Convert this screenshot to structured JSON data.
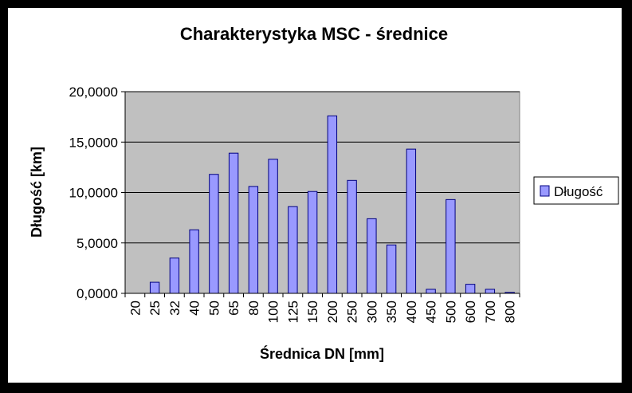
{
  "chart_data": {
    "type": "bar",
    "title": "Charakterystyka MSC - średnice",
    "xlabel": "Średnica DN [mm]",
    "ylabel": "Długość [km]",
    "categories": [
      "20",
      "25",
      "32",
      "40",
      "50",
      "65",
      "80",
      "100",
      "125",
      "150",
      "200",
      "250",
      "300",
      "350",
      "400",
      "450",
      "500",
      "600",
      "700",
      "800"
    ],
    "series": [
      {
        "name": "Długość",
        "values": [
          0.0,
          1.1,
          3.5,
          6.3,
          11.8,
          13.9,
          10.6,
          13.3,
          8.6,
          10.1,
          17.6,
          11.2,
          7.4,
          4.8,
          14.3,
          0.4,
          9.3,
          0.9,
          0.4,
          0.1
        ]
      }
    ],
    "ylim": [
      0,
      20
    ],
    "yticks": [
      0,
      5,
      10,
      15,
      20
    ],
    "ytick_labels": [
      "0,0000",
      "5,0000",
      "10,0000",
      "15,0000",
      "20,0000"
    ],
    "grid": true,
    "legend": "right",
    "colors": {
      "bar_fill": "#9999ff",
      "bar_stroke": "#000080",
      "plot_bg": "#c0c0c0",
      "frame": "#000000"
    }
  }
}
